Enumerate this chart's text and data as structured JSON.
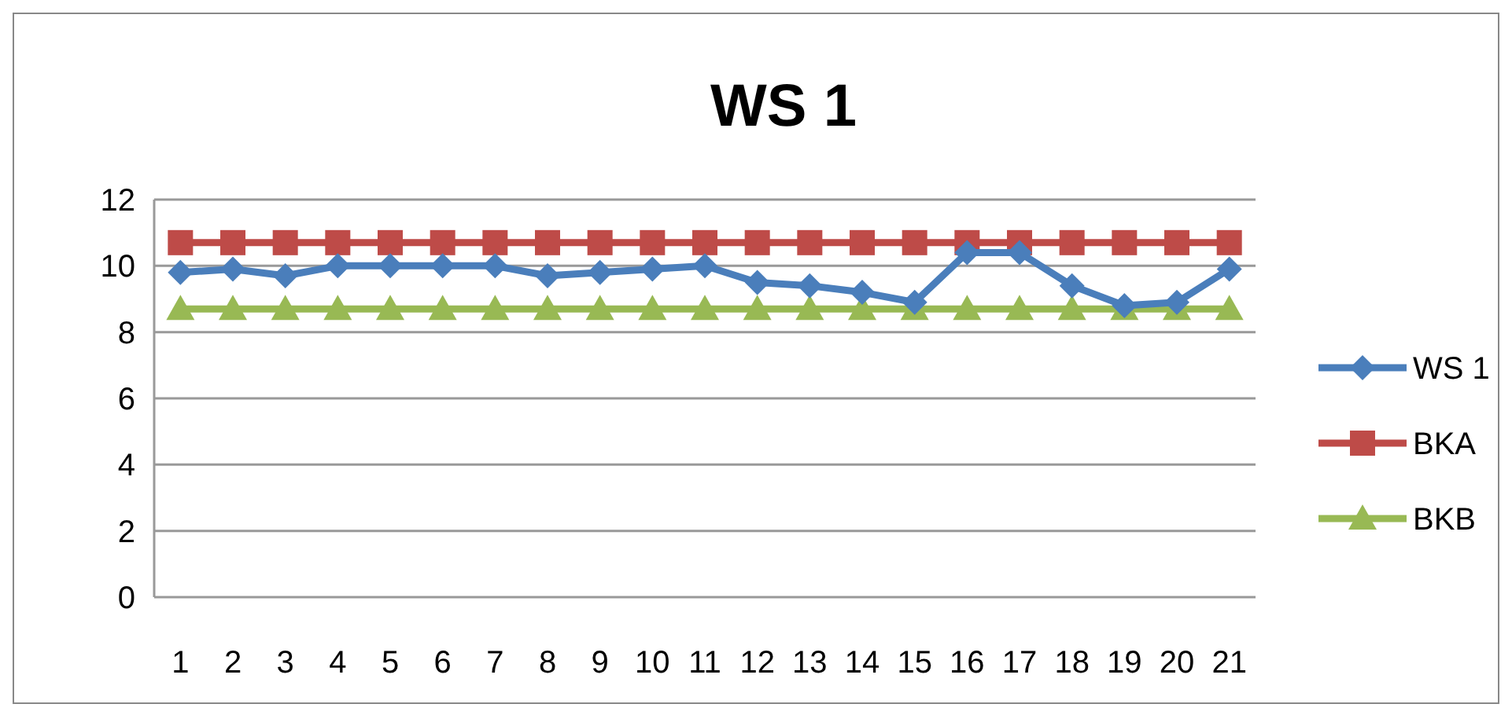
{
  "chart_data": {
    "type": "line",
    "title": "WS 1",
    "categories": [
      "1",
      "2",
      "3",
      "4",
      "5",
      "6",
      "7",
      "8",
      "9",
      "10",
      "11",
      "12",
      "13",
      "14",
      "15",
      "16",
      "17",
      "18",
      "19",
      "20",
      "21"
    ],
    "series": [
      {
        "name": "WS 1",
        "color": "#4a7ebb",
        "marker": "diamond",
        "values": [
          9.8,
          9.9,
          9.7,
          10,
          10,
          10,
          10,
          9.7,
          9.8,
          9.9,
          10,
          9.5,
          9.4,
          9.2,
          8.9,
          10.4,
          10.4,
          9.4,
          8.8,
          8.9,
          9.9
        ]
      },
      {
        "name": "BKA",
        "color": "#be4b48",
        "marker": "square",
        "values": [
          10.7,
          10.7,
          10.7,
          10.7,
          10.7,
          10.7,
          10.7,
          10.7,
          10.7,
          10.7,
          10.7,
          10.7,
          10.7,
          10.7,
          10.7,
          10.7,
          10.7,
          10.7,
          10.7,
          10.7,
          10.7
        ]
      },
      {
        "name": "BKB",
        "color": "#98b954",
        "marker": "triangle",
        "values": [
          8.7,
          8.7,
          8.7,
          8.7,
          8.7,
          8.7,
          8.7,
          8.7,
          8.7,
          8.7,
          8.7,
          8.7,
          8.7,
          8.7,
          8.7,
          8.7,
          8.7,
          8.7,
          8.7,
          8.7,
          8.7
        ]
      }
    ],
    "ylim": [
      0,
      12
    ],
    "yticks": [
      0,
      2,
      4,
      6,
      8,
      10,
      12
    ],
    "grid": "y",
    "legend": "right"
  }
}
